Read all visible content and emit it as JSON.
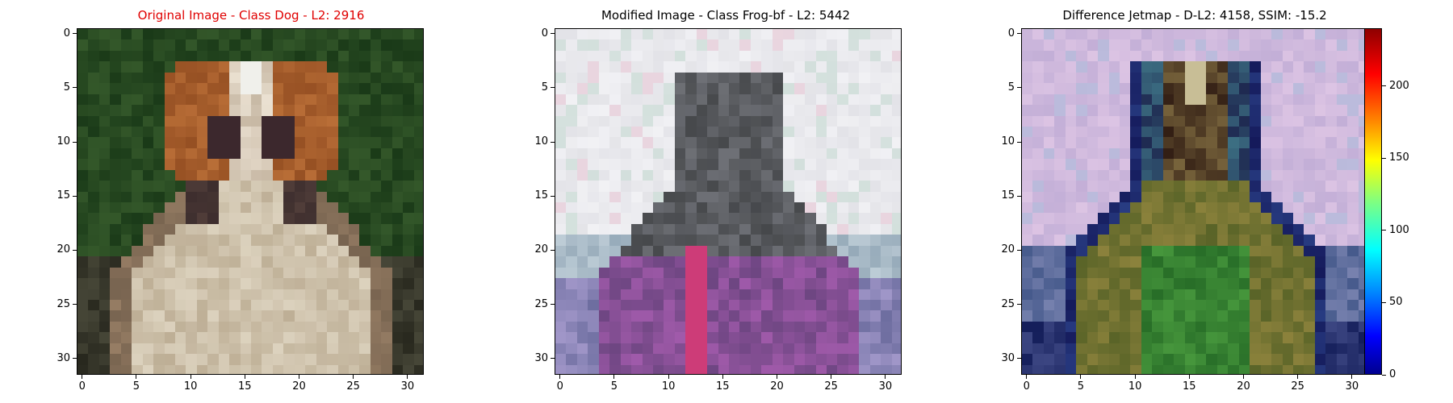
{
  "panels": [
    {
      "id": "original",
      "title": "Original Image - Class Dog - L2: 2916",
      "title_color": "#e00000",
      "x_ticks": [
        "0",
        "5",
        "10",
        "15",
        "20",
        "25",
        "30"
      ],
      "y_ticks": [
        "0",
        "5",
        "10",
        "15",
        "20",
        "25",
        "30"
      ],
      "image_description": "32x32 pixelated photo of a brown and white long-eared dog on dark green foliage background"
    },
    {
      "id": "modified",
      "title": "Modified Image - Class Frog-bf - L2: 5442",
      "title_color": "#000000",
      "x_ticks": [
        "0",
        "5",
        "10",
        "15",
        "20",
        "25",
        "30"
      ],
      "y_ticks": [
        "0",
        "5",
        "10",
        "15",
        "20",
        "25",
        "30"
      ],
      "image_description": "32x32 adversarially modified image: pale pinkish-white background, dark grey figure with purple and magenta lower region"
    },
    {
      "id": "difference",
      "title": "Difference Jetmap - D-L2: 4158, SSIM: -15.2",
      "title_color": "#000000",
      "x_ticks": [
        "0",
        "5",
        "10",
        "15",
        "20",
        "25",
        "30"
      ],
      "y_ticks": [
        "0",
        "5",
        "10",
        "15",
        "20",
        "25",
        "30"
      ],
      "image_description": "32x32 difference heatmap: lavender/pink background, dark navy and teal figure, olive-green lower body"
    }
  ],
  "colorbar": {
    "ticks": [
      "0",
      "50",
      "100",
      "150",
      "200"
    ],
    "colormap": "jet",
    "range": [
      0,
      240
    ]
  }
}
